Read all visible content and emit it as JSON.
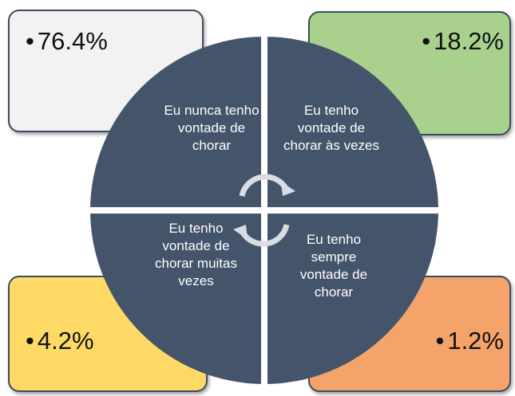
{
  "quadrants": [
    {
      "label": "Eu nunca tenho vontade de chorar",
      "value": "76.4%"
    },
    {
      "label": "Eu tenho vontade de chorar às vezes",
      "value": "18.2%"
    },
    {
      "label": "Eu tenho vontade de chorar muitas vezes",
      "value": "4.2%"
    },
    {
      "label": "Eu tenho sempre vontade de chorar",
      "value": "1.2%"
    }
  ]
}
